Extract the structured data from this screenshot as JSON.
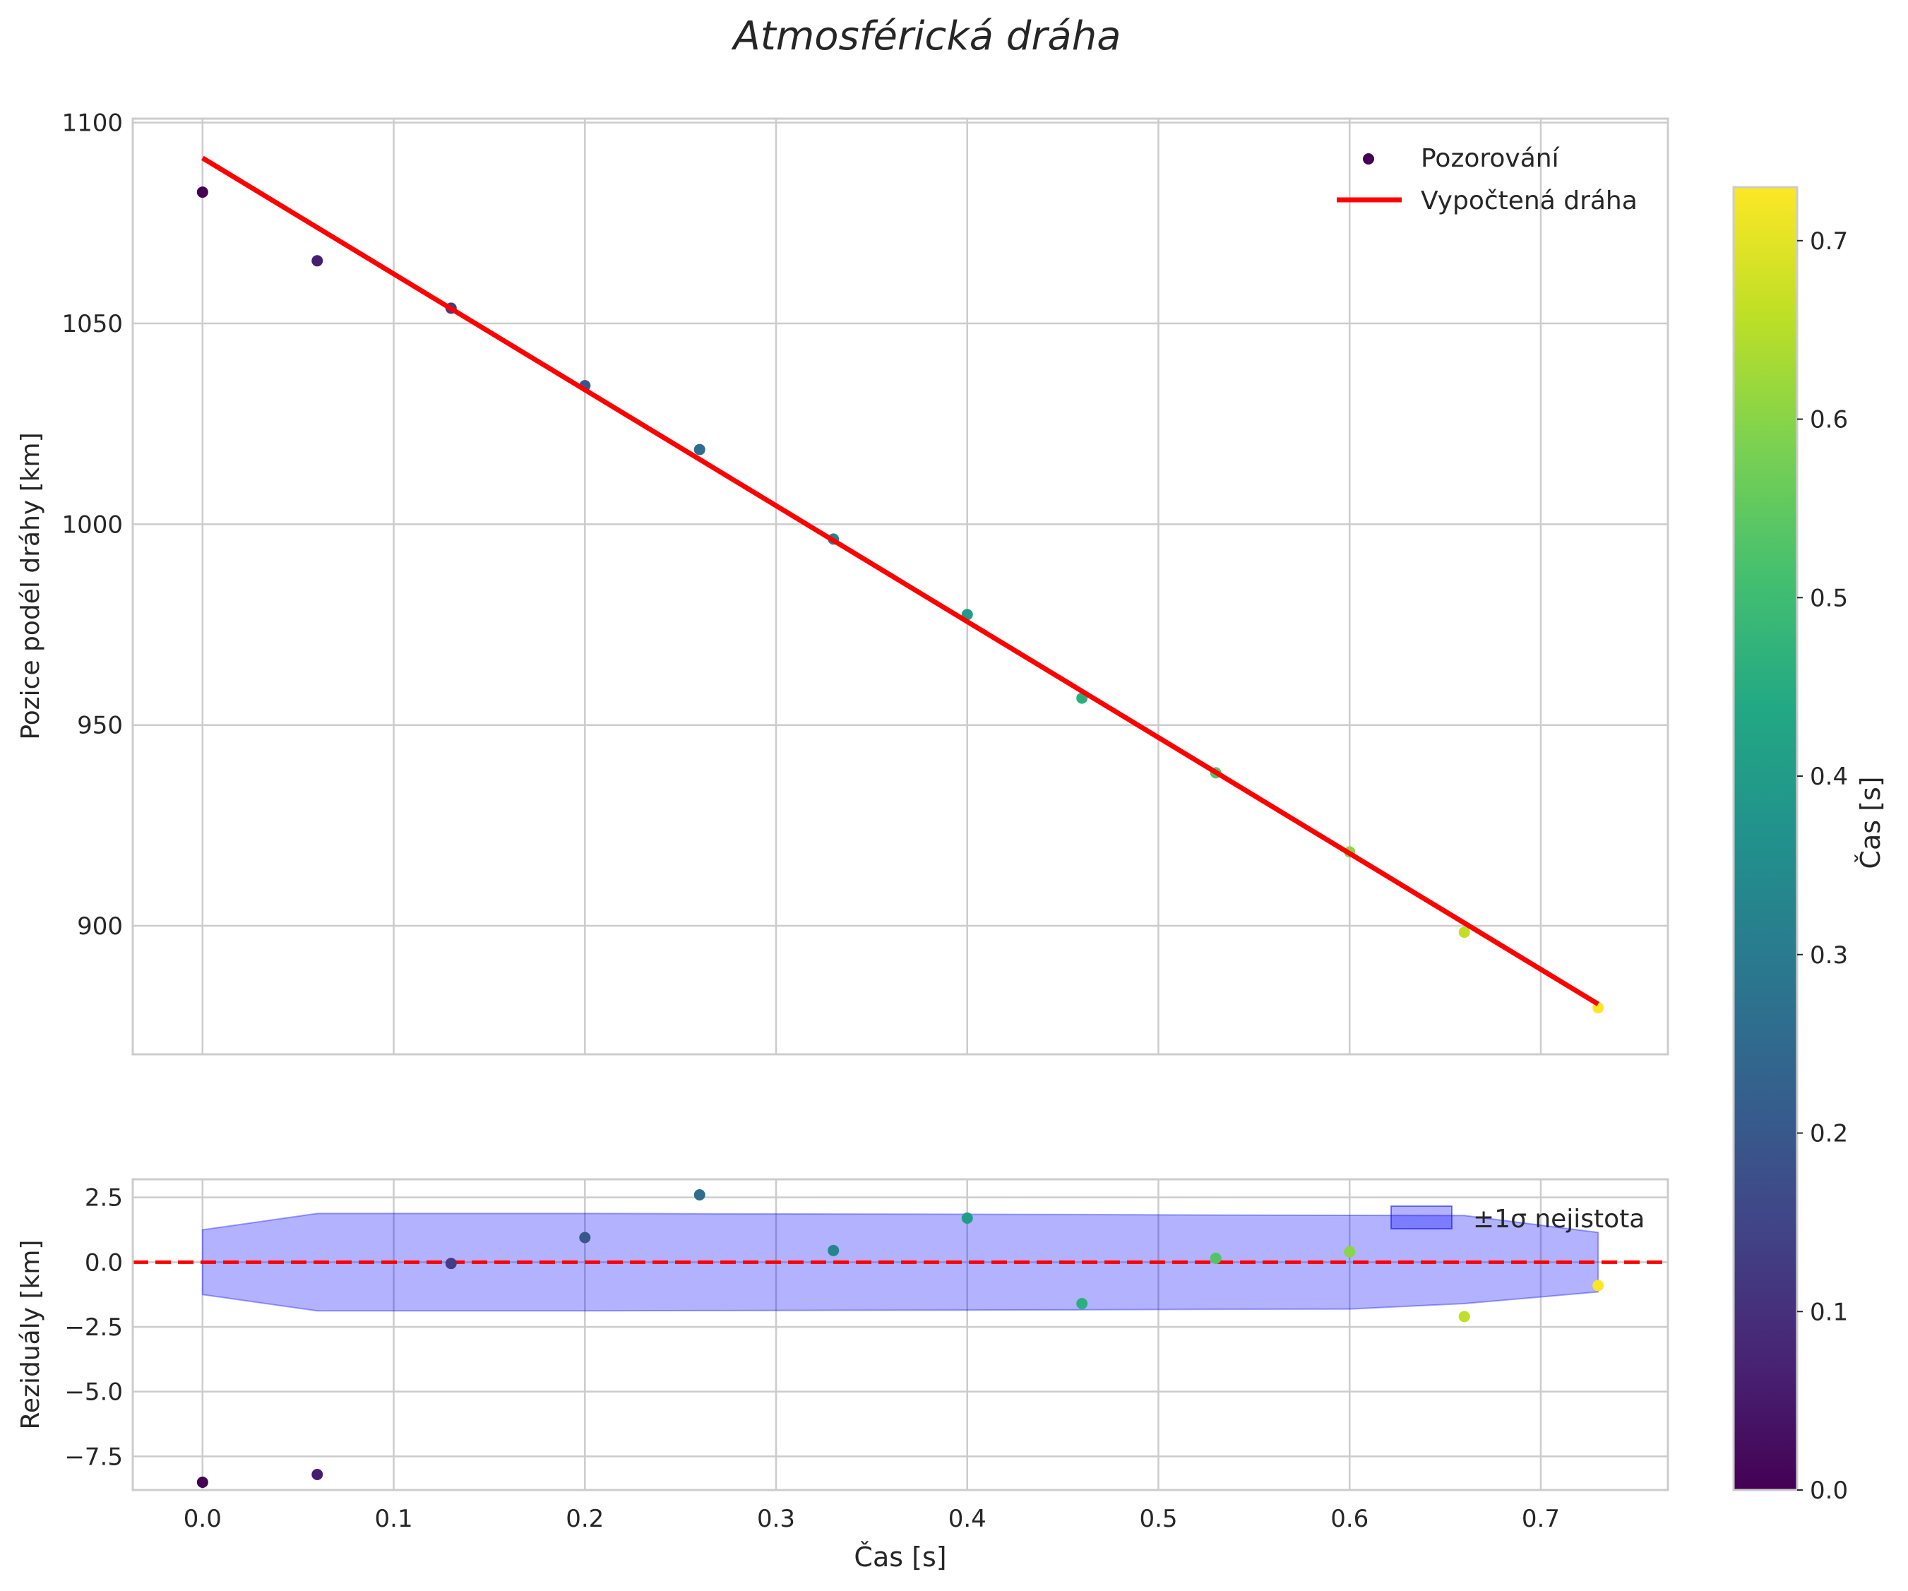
{
  "chart_data": [
    {
      "type": "scatter",
      "title": "Atmosférická dráha",
      "xlabel": "",
      "ylabel": "Pozice podél dráhy [km]",
      "xlim": [
        -0.0365,
        0.7665
      ],
      "ylim": [
        868,
        1101
      ],
      "xticks": [
        0.0,
        0.1,
        0.2,
        0.3,
        0.4,
        0.5,
        0.6,
        0.7
      ],
      "yticks": [
        900,
        950,
        1000,
        1050,
        1100
      ],
      "grid": true,
      "legend_position": "top-right",
      "series": [
        {
          "name": "Pozorování",
          "kind": "scatter",
          "x": [
            0.0,
            0.06,
            0.13,
            0.2,
            0.26,
            0.33,
            0.4,
            0.46,
            0.53,
            0.6,
            0.66,
            0.73
          ],
          "y": [
            1082.7,
            1065.6,
            1053.8,
            1034.5,
            1018.6,
            996.3,
            977.5,
            956.7,
            938.1,
            918.4,
            898.4,
            879.6
          ]
        },
        {
          "name": "Vypočtená dráha",
          "kind": "line",
          "color": "#ff0000",
          "x": [
            0.0,
            0.73
          ],
          "y": [
            1091.2,
            880.5
          ]
        }
      ]
    },
    {
      "type": "scatter",
      "xlabel": "Čas [s]",
      "ylabel": "Reziduály [km]",
      "xlim": [
        -0.0365,
        0.7665
      ],
      "ylim": [
        -8.8,
        3.2
      ],
      "xticks": [
        0.0,
        0.1,
        0.2,
        0.3,
        0.4,
        0.5,
        0.6,
        0.7
      ],
      "xtick_labels": [
        "0.0",
        "0.1",
        "0.2",
        "0.3",
        "0.4",
        "0.5",
        "0.6",
        "0.7"
      ],
      "yticks": [
        2.5,
        0.0,
        -2.5,
        -5.0,
        -7.5
      ],
      "ytick_labels": [
        "2.5",
        "0.0",
        "−2.5",
        "−5.0",
        "−7.5"
      ],
      "grid": true,
      "legend_position": "top-right",
      "series": [
        {
          "name": "Reziduály",
          "kind": "scatter",
          "x": [
            0.0,
            0.06,
            0.13,
            0.2,
            0.26,
            0.33,
            0.4,
            0.46,
            0.53,
            0.6,
            0.66,
            0.73
          ],
          "y": [
            -8.5,
            -8.2,
            -0.05,
            0.95,
            2.6,
            0.45,
            1.7,
            -1.6,
            0.15,
            0.4,
            -2.1,
            -0.9
          ]
        },
        {
          "name": "±1σ nejistota",
          "kind": "band",
          "color": "#0000ff",
          "x": [
            0.0,
            0.06,
            0.13,
            0.2,
            0.26,
            0.33,
            0.4,
            0.46,
            0.53,
            0.6,
            0.66,
            0.73
          ],
          "upper": [
            1.25,
            1.88,
            1.88,
            1.88,
            1.87,
            1.86,
            1.85,
            1.84,
            1.82,
            1.81,
            1.8,
            1.15
          ],
          "lower": [
            -1.25,
            -1.88,
            -1.88,
            -1.88,
            -1.87,
            -1.86,
            -1.85,
            -1.84,
            -1.82,
            -1.81,
            -1.6,
            -1.15
          ]
        },
        {
          "name": "zero",
          "kind": "hline",
          "color": "#ff0000",
          "y": 0
        }
      ]
    }
  ],
  "colorbar": {
    "label": "Čas [s]",
    "range": [
      0.0,
      0.73
    ],
    "ticks": [
      0.0,
      0.1,
      0.2,
      0.3,
      0.4,
      0.5,
      0.6,
      0.7
    ],
    "tick_labels": [
      "0.0",
      "0.1",
      "0.2",
      "0.3",
      "0.4",
      "0.5",
      "0.6",
      "0.7"
    ],
    "colormap": "viridis"
  }
}
